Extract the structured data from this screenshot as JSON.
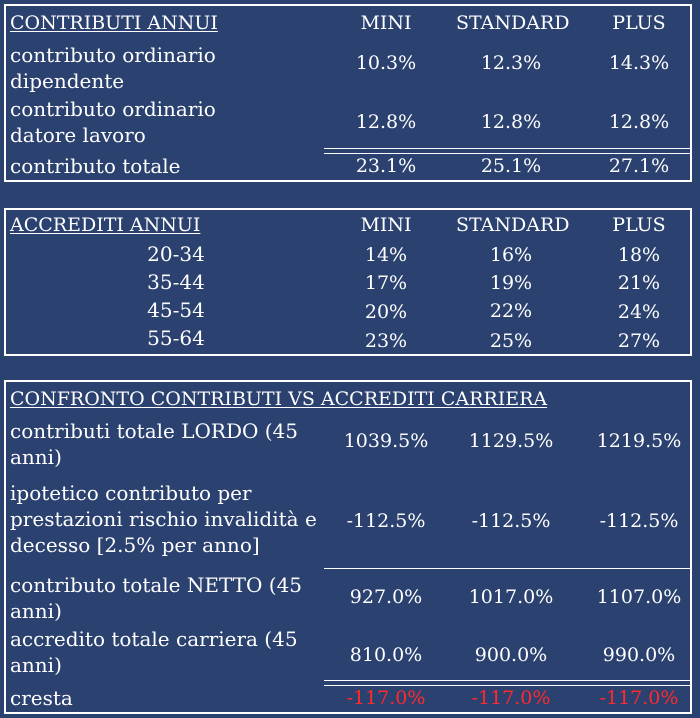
{
  "columns": [
    "MINI",
    "STANDARD",
    "PLUS"
  ],
  "contributi": {
    "title": "CONTRIBUTI ANNUI",
    "rows": [
      {
        "label": "contributo ordinario dipendente",
        "values": [
          "10.3%",
          "12.3%",
          "14.3%"
        ]
      },
      {
        "label": "contributo ordinario datore lavoro",
        "values": [
          "12.8%",
          "12.8%",
          "12.8%"
        ]
      },
      {
        "label": "contributo totale",
        "values": [
          "23.1%",
          "25.1%",
          "27.1%"
        ]
      }
    ]
  },
  "accrediti": {
    "title": "ACCREDITI ANNUI",
    "rows": [
      {
        "label": "20-34",
        "values": [
          "14%",
          "16%",
          "18%"
        ]
      },
      {
        "label": "35-44",
        "values": [
          "17%",
          "19%",
          "21%"
        ]
      },
      {
        "label": "45-54",
        "values": [
          "20%",
          "22%",
          "24%"
        ]
      },
      {
        "label": "55-64",
        "values": [
          "23%",
          "25%",
          "27%"
        ]
      }
    ]
  },
  "confronto": {
    "title": "CONFRONTO CONTRIBUTI VS ACCREDITI CARRIERA",
    "rows": [
      {
        "label": "contributi totale LORDO (45 anni)",
        "values": [
          "1039.5%",
          "1129.5%",
          "1219.5%"
        ]
      },
      {
        "label": "ipotetico contributo per prestazioni rischio invalidità e decesso [2.5% per anno]",
        "values": [
          "-112.5%",
          "-112.5%",
          "-112.5%"
        ]
      },
      {
        "label": "contributo totale NETTO (45 anni)",
        "values": [
          "927.0%",
          "1017.0%",
          "1107.0%"
        ]
      },
      {
        "label": "accredito totale carriera (45 anni)",
        "values": [
          "810.0%",
          "900.0%",
          "990.0%"
        ]
      },
      {
        "label": "cresta",
        "values": [
          "-117.0%",
          "-117.0%",
          "-117.0%"
        ]
      }
    ],
    "negative_color": "#ff2a2a"
  },
  "colors": {
    "background": "#2b4170",
    "text": "#ffffff"
  }
}
